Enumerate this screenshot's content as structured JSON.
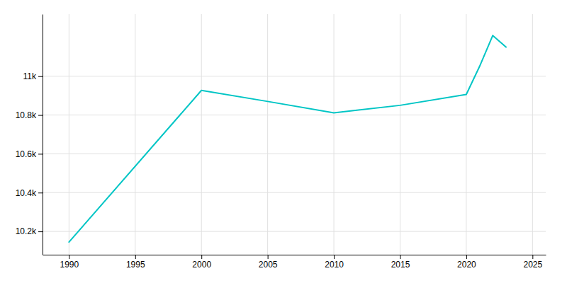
{
  "chart_data": {
    "type": "line",
    "x": [
      1990,
      2000,
      2005,
      2010,
      2015,
      2020,
      2021,
      2022,
      2023
    ],
    "values": [
      10145,
      10927,
      10870,
      10811,
      10850,
      10906,
      11050,
      11210,
      11150
    ],
    "color": "#00C5C5",
    "xlim": [
      1988,
      2026
    ],
    "ylim": [
      10080,
      11320
    ],
    "xticks": [
      1990,
      1995,
      2000,
      2005,
      2010,
      2015,
      2020,
      2025
    ],
    "yticks": [
      {
        "value": 10200,
        "label": "10.2k"
      },
      {
        "value": 10400,
        "label": "10.4k"
      },
      {
        "value": 10600,
        "label": "10.6k"
      },
      {
        "value": 10800,
        "label": "10.8k"
      },
      {
        "value": 11000,
        "label": "11k"
      }
    ],
    "grid": true
  }
}
